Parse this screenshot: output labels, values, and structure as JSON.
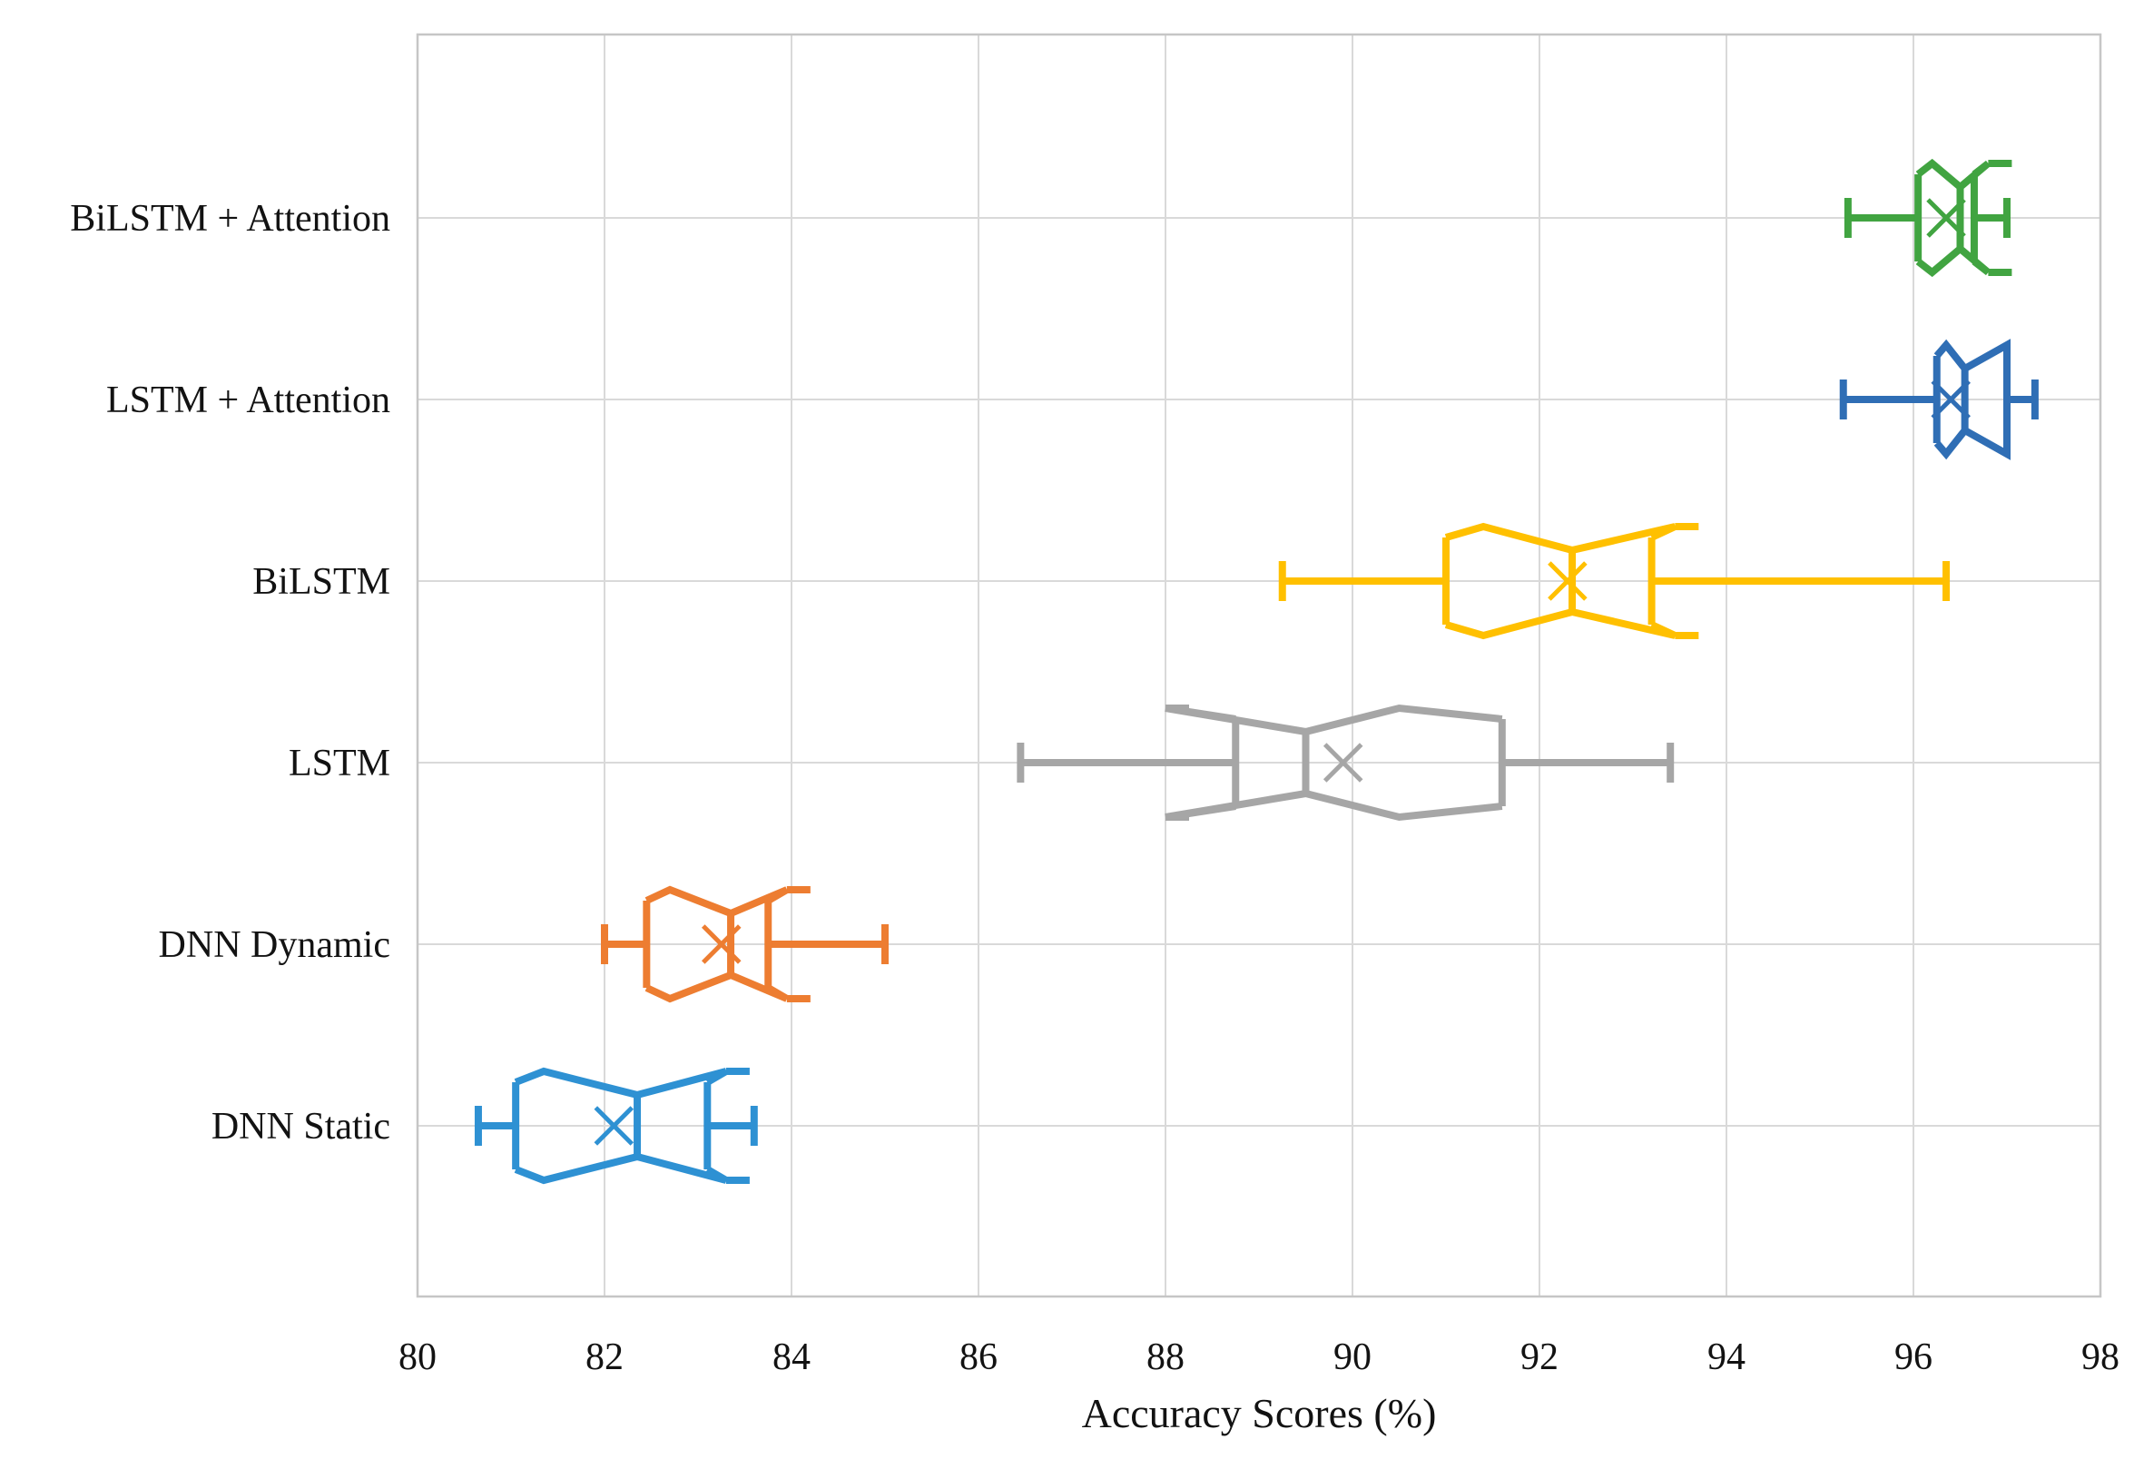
{
  "chart_data": {
    "type": "boxplot",
    "orientation": "horizontal",
    "title": "",
    "xlabel": "Accuracy Scores (%)",
    "ylabel": "",
    "grid": true,
    "legend": "none",
    "x_axis": {
      "min": 80,
      "max": 98,
      "tick_step": 2,
      "ticks": [
        80,
        82,
        84,
        86,
        88,
        90,
        92,
        94,
        96,
        98
      ]
    },
    "categories_top_to_bottom": [
      "BiLSTM + Attention",
      "LSTM + Attention",
      "BiLSTM",
      "LSTM",
      "DNN Dynamic",
      "DNN Static"
    ],
    "series": [
      {
        "name": "BiLSTM + Attention",
        "color": "#41A441",
        "whisker_low": 95.3,
        "q1": 96.05,
        "median": 96.5,
        "q3": 96.65,
        "whisker_high": 97.0,
        "mean": 96.35,
        "notch_low": 96.2,
        "notch_high": 96.8
      },
      {
        "name": "LSTM + Attention",
        "color": "#2F6EB5",
        "whisker_low": 95.25,
        "q1": 96.25,
        "median": 96.55,
        "q3": 97.0,
        "whisker_high": 97.3,
        "mean": 96.4,
        "notch_low": 96.35,
        "notch_high": 97.0
      },
      {
        "name": "BiLSTM",
        "color": "#FFC000",
        "whisker_low": 89.25,
        "q1": 91.0,
        "median": 92.35,
        "q3": 93.2,
        "whisker_high": 96.35,
        "mean": 92.3,
        "notch_low": 91.4,
        "notch_high": 93.45
      },
      {
        "name": "LSTM",
        "color": "#A6A6A6",
        "whisker_low": 86.45,
        "q1": 88.75,
        "median": 89.5,
        "q3": 91.6,
        "whisker_high": 93.4,
        "mean": 89.9,
        "notch_low": 88.0,
        "notch_high": 90.5
      },
      {
        "name": "DNN Dynamic",
        "color": "#ED7D31",
        "whisker_low": 82.0,
        "q1": 82.45,
        "median": 83.35,
        "q3": 83.75,
        "whisker_high": 85.0,
        "mean": 83.25,
        "notch_low": 82.7,
        "notch_high": 83.95
      },
      {
        "name": "DNN Static",
        "color": "#2E91D3",
        "whisker_low": 80.65,
        "q1": 81.05,
        "median": 82.35,
        "q3": 83.1,
        "whisker_high": 83.6,
        "mean": 82.1,
        "notch_low": 81.35,
        "notch_high": 83.3
      }
    ]
  },
  "styles": {
    "background": "#FFFFFF",
    "grid_color": "#D9D9D9",
    "border_color": "#C6C6C6",
    "text_color": "#121212"
  }
}
